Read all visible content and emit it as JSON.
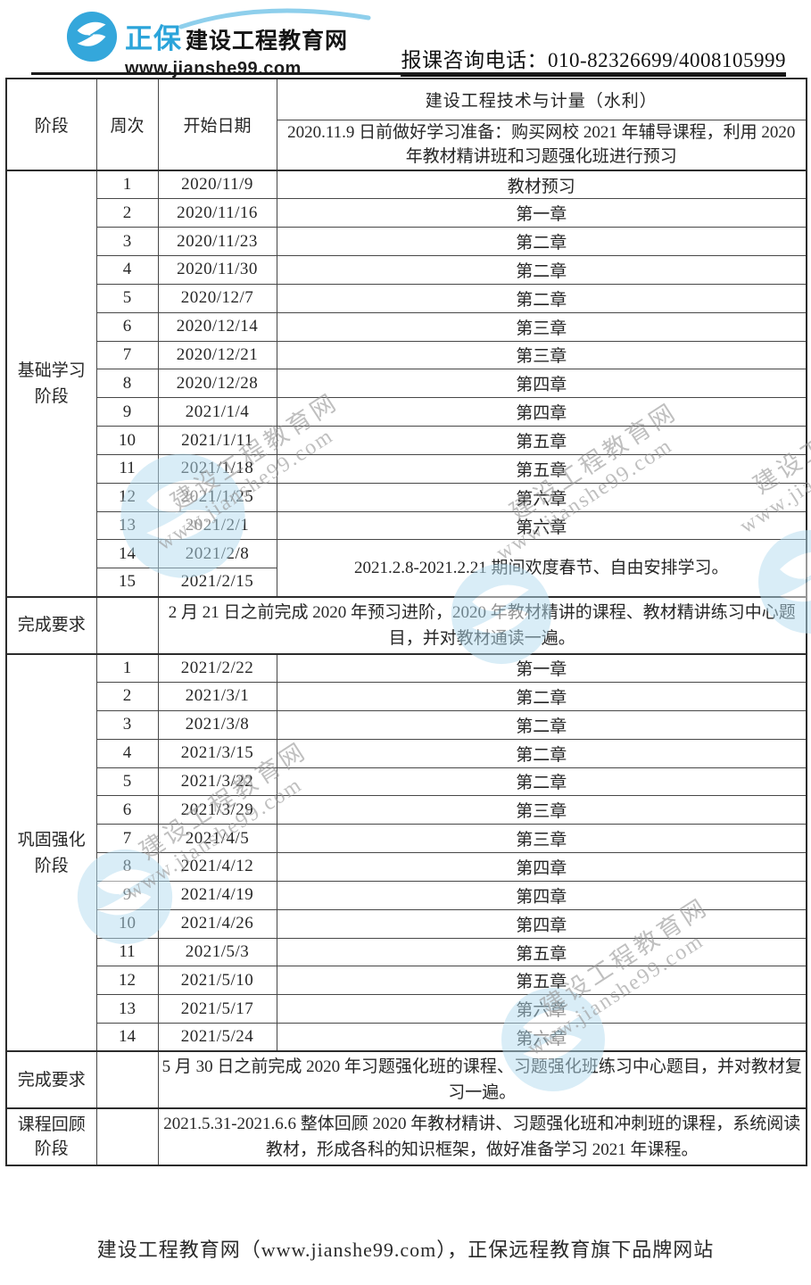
{
  "header": {
    "logo": {
      "brand": "正保",
      "site_name": "建设工程教育网",
      "url": "www.jianshe99.com"
    },
    "phone_label": "报课咨询电话：010-82326699/4008105999"
  },
  "table": {
    "columns": {
      "stage": "阶段",
      "week": "周次",
      "start_date": "开始日期"
    },
    "course_title": "建设工程技术与计量（水利）",
    "prep_note": "2020.11.9 日前做好学习准备：购买网校 2021 年辅导课程，利用 2020 年教材精讲班和习题强化班进行预习",
    "stage1": {
      "label": "基础学习阶段",
      "weeks": [
        {
          "week": "1",
          "date": "2020/11/9",
          "content": "教材预习"
        },
        {
          "week": "2",
          "date": "2020/11/16",
          "content": "第一章"
        },
        {
          "week": "3",
          "date": "2020/11/23",
          "content": "第二章"
        },
        {
          "week": "4",
          "date": "2020/11/30",
          "content": "第二章"
        },
        {
          "week": "5",
          "date": "2020/12/7",
          "content": "第二章"
        },
        {
          "week": "6",
          "date": "2020/12/14",
          "content": "第三章"
        },
        {
          "week": "7",
          "date": "2020/12/21",
          "content": "第三章"
        },
        {
          "week": "8",
          "date": "2020/12/28",
          "content": "第四章"
        },
        {
          "week": "9",
          "date": "2021/1/4",
          "content": "第四章"
        },
        {
          "week": "10",
          "date": "2021/1/11",
          "content": "第五章"
        },
        {
          "week": "11",
          "date": "2021/1/18",
          "content": "第五章"
        },
        {
          "week": "12",
          "date": "2021/1/25",
          "content": "第六章"
        },
        {
          "week": "13",
          "date": "2021/2/1",
          "content": "第六章"
        },
        {
          "week": "14",
          "date": "2021/2/8"
        },
        {
          "week": "15",
          "date": "2021/2/15"
        }
      ],
      "merged_note": "2021.2.8-2021.2.21 期间欢度春节、自由安排学习。"
    },
    "requirement1": {
      "label": "完成要求",
      "text": "2 月 21 日之前完成 2020 年预习进阶，2020 年教材精讲的课程、教材精讲练习中心题目，并对教材通读一遍。"
    },
    "stage2": {
      "label": "巩固强化阶段",
      "weeks": [
        {
          "week": "1",
          "date": "2021/2/22",
          "content": "第一章"
        },
        {
          "week": "2",
          "date": "2021/3/1",
          "content": "第二章"
        },
        {
          "week": "3",
          "date": "2021/3/8",
          "content": "第二章"
        },
        {
          "week": "4",
          "date": "2021/3/15",
          "content": "第二章"
        },
        {
          "week": "5",
          "date": "2021/3/22",
          "content": "第二章"
        },
        {
          "week": "6",
          "date": "2021/3/29",
          "content": "第三章"
        },
        {
          "week": "7",
          "date": "2021/4/5",
          "content": "第三章"
        },
        {
          "week": "8",
          "date": "2021/4/12",
          "content": "第四章"
        },
        {
          "week": "9",
          "date": "2021/4/19",
          "content": "第四章"
        },
        {
          "week": "10",
          "date": "2021/4/26",
          "content": "第四章"
        },
        {
          "week": "11",
          "date": "2021/5/3",
          "content": "第五章"
        },
        {
          "week": "12",
          "date": "2021/5/10",
          "content": "第五章"
        },
        {
          "week": "13",
          "date": "2021/5/17",
          "content": "第六章"
        },
        {
          "week": "14",
          "date": "2021/5/24",
          "content": "第六章"
        }
      ]
    },
    "requirement2": {
      "label": "完成要求",
      "text": "5 月 30 日之前完成 2020 年习题强化班的课程、习题强化班练习中心题目，并对教材复习一遍。"
    },
    "review": {
      "label": "课程回顾阶段",
      "text": "2021.5.31-2021.6.6 整体回顾 2020 年教材精讲、习题强化班和冲刺班的课程，系统阅读教材，形成各科的知识框架，做好准备学习 2021 年课程。"
    }
  },
  "watermark": {
    "line1": "建设工程教育网",
    "line2": "www.jianshe99.com"
  },
  "footer": {
    "text": "建设工程教育网（www.jianshe99.com），正保远程教育旗下品牌网站"
  },
  "colors": {
    "brand_blue": "#2ba4da",
    "watermark_blue": "#b5ddf0",
    "border_dark": "#2c2c2c",
    "text": "#262626"
  }
}
